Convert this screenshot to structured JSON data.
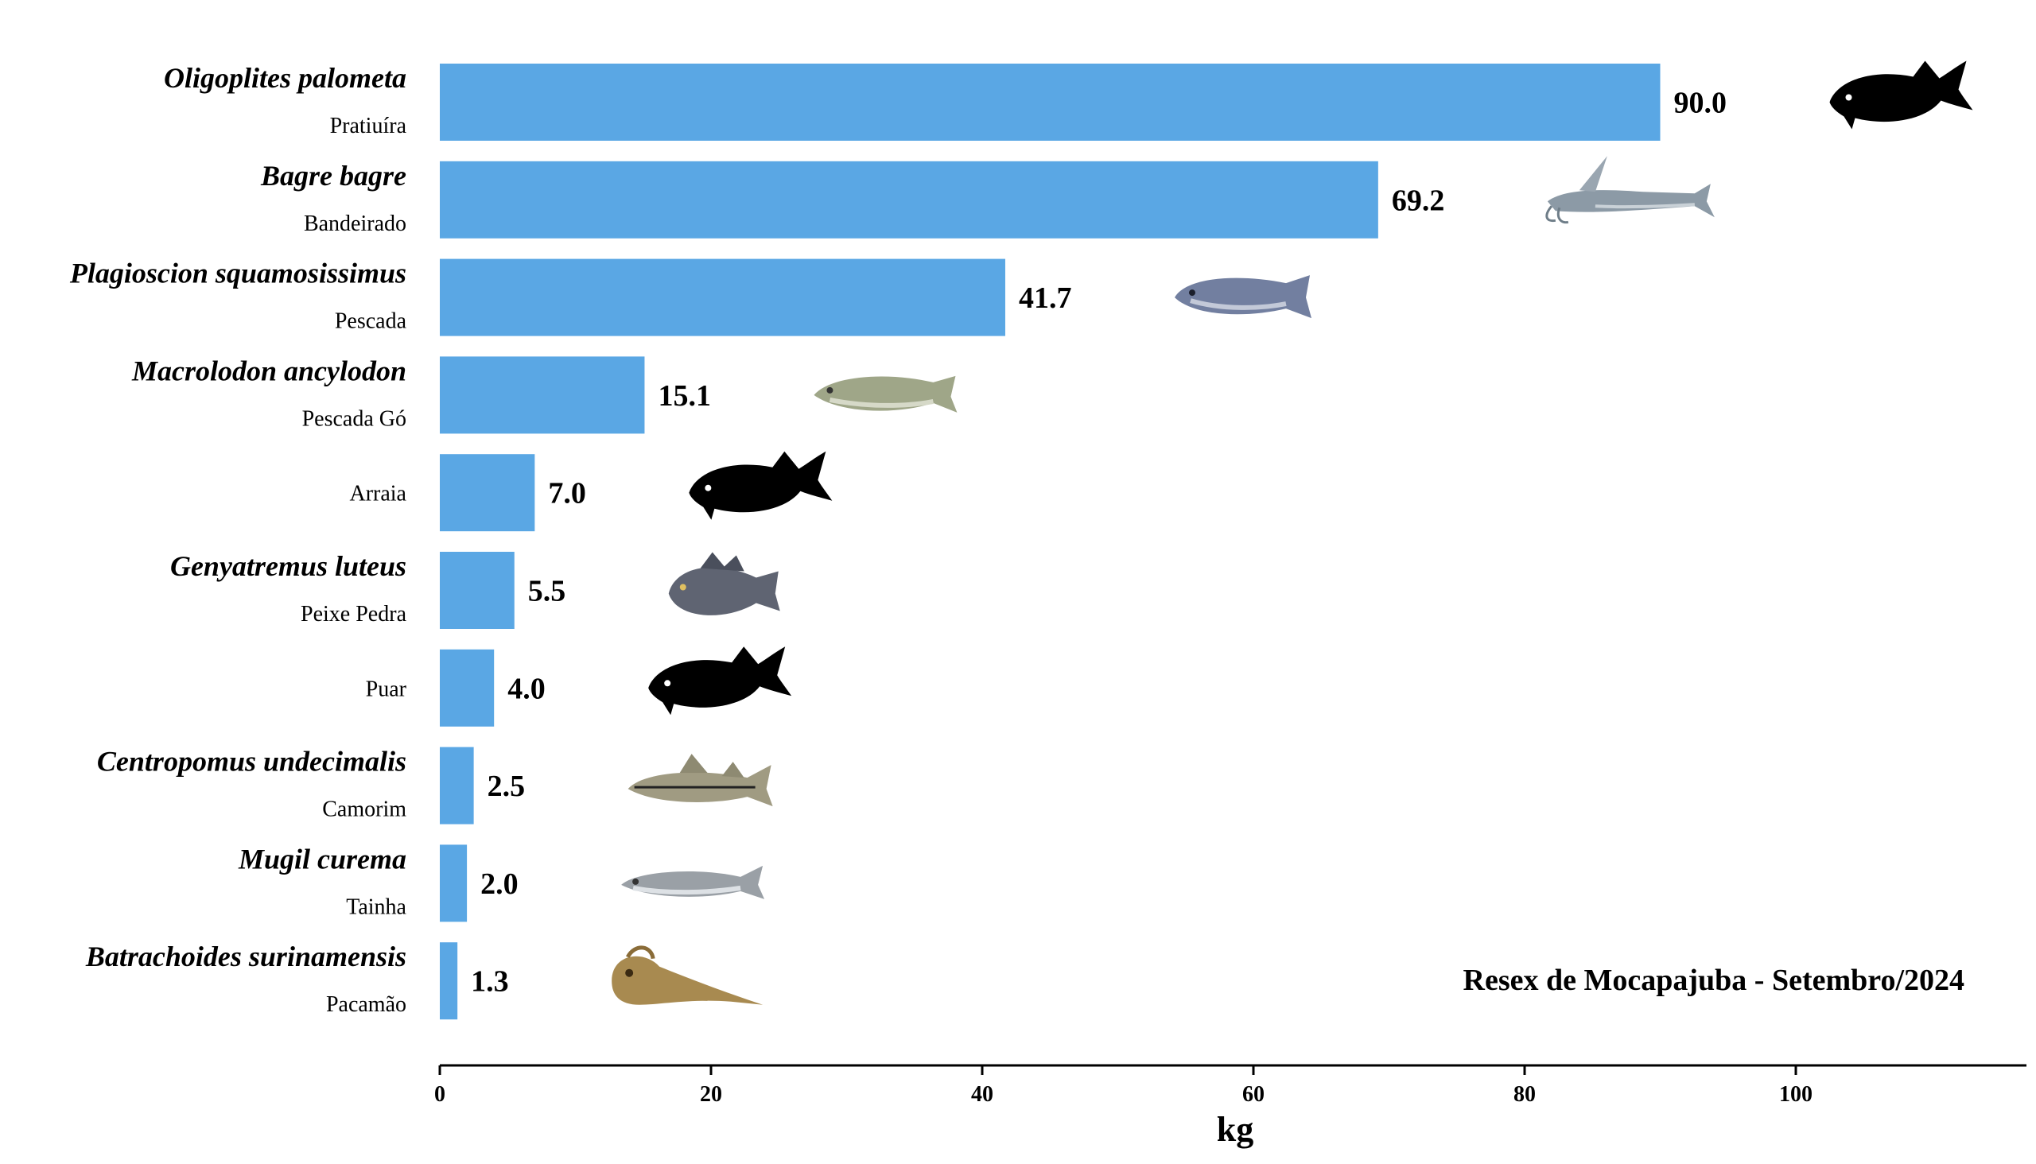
{
  "chart_data": {
    "type": "bar",
    "orientation": "horizontal",
    "title": "",
    "xlabel": "kg",
    "ylabel": "",
    "xlim": [
      0,
      117
    ],
    "xticks": [
      0,
      20,
      40,
      60,
      80,
      100
    ],
    "grid": false,
    "annotation": "Resex de Mocapajuba - Setembro/2024",
    "annotation_position": "bottom-right",
    "bar_color": "#5aa7e4",
    "categories": [
      {
        "scientific": "Oligoplites palometa",
        "common": "Pratiuíra",
        "value": 90.0,
        "value_label": "90.0",
        "icon": "silhouette-fish-icon"
      },
      {
        "scientific": "Bagre bagre",
        "common": "Bandeirado",
        "value": 69.2,
        "value_label": "69.2",
        "icon": "catfish-icon"
      },
      {
        "scientific": "Plagioscion squamosissimus",
        "common": "Pescada",
        "value": 41.7,
        "value_label": "41.7",
        "icon": "croaker-fish-icon"
      },
      {
        "scientific": "Macrolodon ancylodon",
        "common": "Pescada Gó",
        "value": 15.1,
        "value_label": "15.1",
        "icon": "weakfish-icon"
      },
      {
        "scientific": "",
        "common": "Arraia",
        "value": 7.0,
        "value_label": "7.0",
        "icon": "silhouette-fish-icon"
      },
      {
        "scientific": "Genyatremus luteus",
        "common": "Peixe Pedra",
        "value": 5.5,
        "value_label": "5.5",
        "icon": "grunt-fish-icon"
      },
      {
        "scientific": "",
        "common": "Puar",
        "value": 4.0,
        "value_label": "4.0",
        "icon": "silhouette-fish-icon"
      },
      {
        "scientific": "Centropomus undecimalis",
        "common": "Camorim",
        "value": 2.5,
        "value_label": "2.5",
        "icon": "snook-fish-icon"
      },
      {
        "scientific": "Mugil curema",
        "common": "Tainha",
        "value": 2.0,
        "value_label": "2.0",
        "icon": "mullet-fish-icon"
      },
      {
        "scientific": "Batrachoides surinamensis",
        "common": "Pacamão",
        "value": 1.3,
        "value_label": "1.3",
        "icon": "toadfish-icon"
      }
    ]
  }
}
